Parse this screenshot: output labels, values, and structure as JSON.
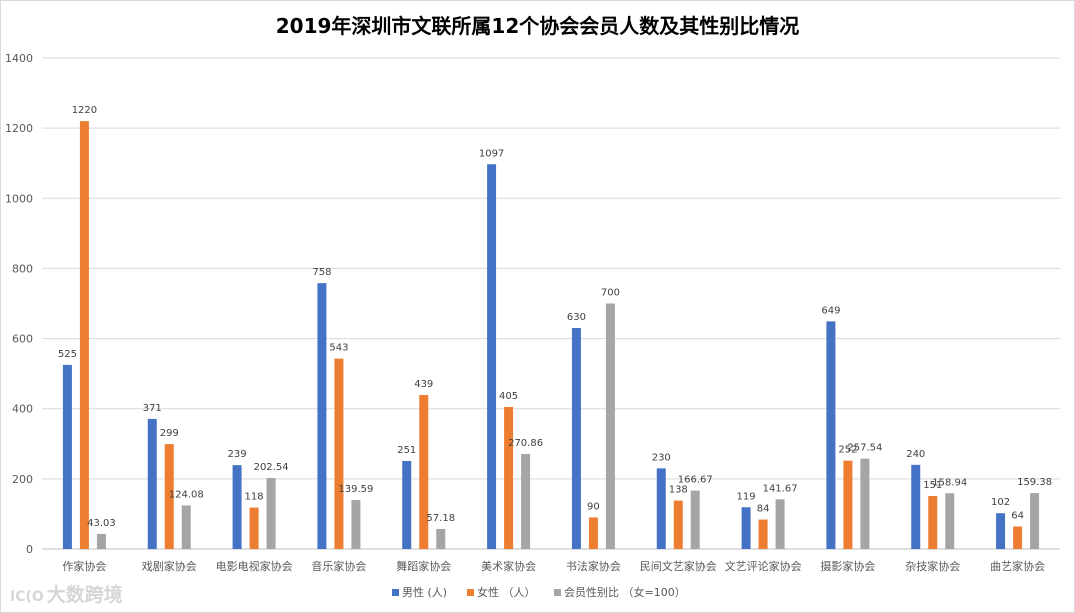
{
  "watermark": {
    "logo_text": "IC(O",
    "text": "大数跨境"
  },
  "colors": {
    "male": "#4472C4",
    "female": "#ED7D31",
    "ratio": "#A5A5A5",
    "grid": "#D9D9D9",
    "axis": "#BFBFBF"
  },
  "chart_data": {
    "type": "bar",
    "title": "2019年深圳市文联所属12个协会会员人数及其性别比情况",
    "xlabel": "",
    "ylabel": "",
    "ylim": [
      0,
      1400
    ],
    "yticks": [
      0,
      200,
      400,
      600,
      800,
      1000,
      1200,
      1400
    ],
    "grid": true,
    "legend_position": "bottom",
    "categories": [
      "作家协会",
      "戏剧家协会",
      "电影电视家协会",
      "音乐家协会",
      "舞蹈家协会",
      "美术家协会",
      "书法家协会",
      "民间文艺家协会",
      "文艺评论家协会",
      "摄影家协会",
      "杂技家协会",
      "曲艺家协会"
    ],
    "series": [
      {
        "name": "男性 (人)",
        "color_key": "male",
        "values": [
          525,
          371,
          239,
          758,
          251,
          1097,
          630,
          230,
          119,
          649,
          240,
          102
        ],
        "labels": [
          "525",
          "371",
          "239",
          "758",
          "251",
          "1097",
          "630",
          "230",
          "119",
          "649",
          "240",
          "102"
        ]
      },
      {
        "name": "女性 （人）",
        "color_key": "female",
        "values": [
          1220,
          299,
          118,
          543,
          439,
          405,
          90,
          138,
          84,
          252,
          151,
          64
        ],
        "labels": [
          "1220",
          "299",
          "118",
          "543",
          "439",
          "405",
          "90",
          "138",
          "84",
          "252",
          "151",
          "64"
        ]
      },
      {
        "name": "会员性别比 （女=100）",
        "color_key": "ratio",
        "values": [
          43.03,
          124.08,
          202.54,
          139.59,
          57.18,
          270.86,
          700,
          166.67,
          141.67,
          257.54,
          158.94,
          159.38
        ],
        "labels": [
          "43.03",
          "124.08",
          "202.54",
          "139.59",
          "57.18",
          "270.86",
          "700",
          "166.67",
          "141.67",
          "257.54",
          "158.94",
          "159.38"
        ]
      }
    ]
  }
}
